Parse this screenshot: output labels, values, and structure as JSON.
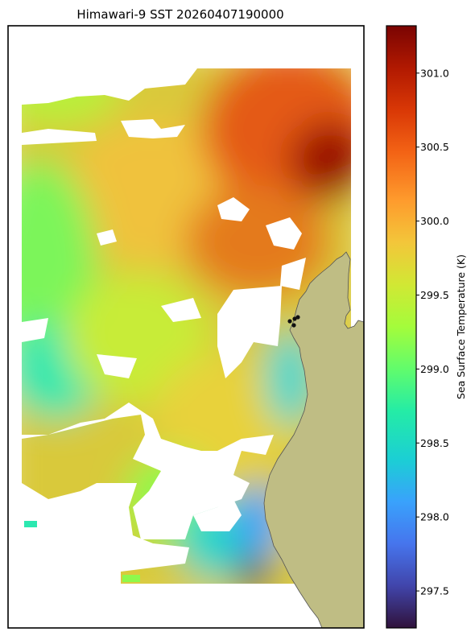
{
  "chart_data": {
    "type": "heatmap",
    "title": "Himawari-9 SST 20260407190000",
    "colorbar": {
      "label": "Sea Surface Temperature (K)",
      "colormap": "turbo",
      "vmin": 297.25,
      "vmax": 301.32,
      "ticks": [
        "297.5",
        "298.0",
        "298.5",
        "299.0",
        "299.5",
        "300.0",
        "300.5",
        "301.0"
      ]
    },
    "grid": false,
    "land_color": "#bfbd84",
    "missing_data_color": "#ffffff",
    "field_summary": [
      {
        "region": "northeast",
        "value": 300.9
      },
      {
        "region": "north-central",
        "value": 300.1
      },
      {
        "region": "west-central",
        "value": 299.3
      },
      {
        "region": "south-central",
        "value": 299.5
      },
      {
        "region": "southeast near coast",
        "value": 297.9
      }
    ],
    "markers": {
      "color": "#111111",
      "count": 4
    }
  }
}
